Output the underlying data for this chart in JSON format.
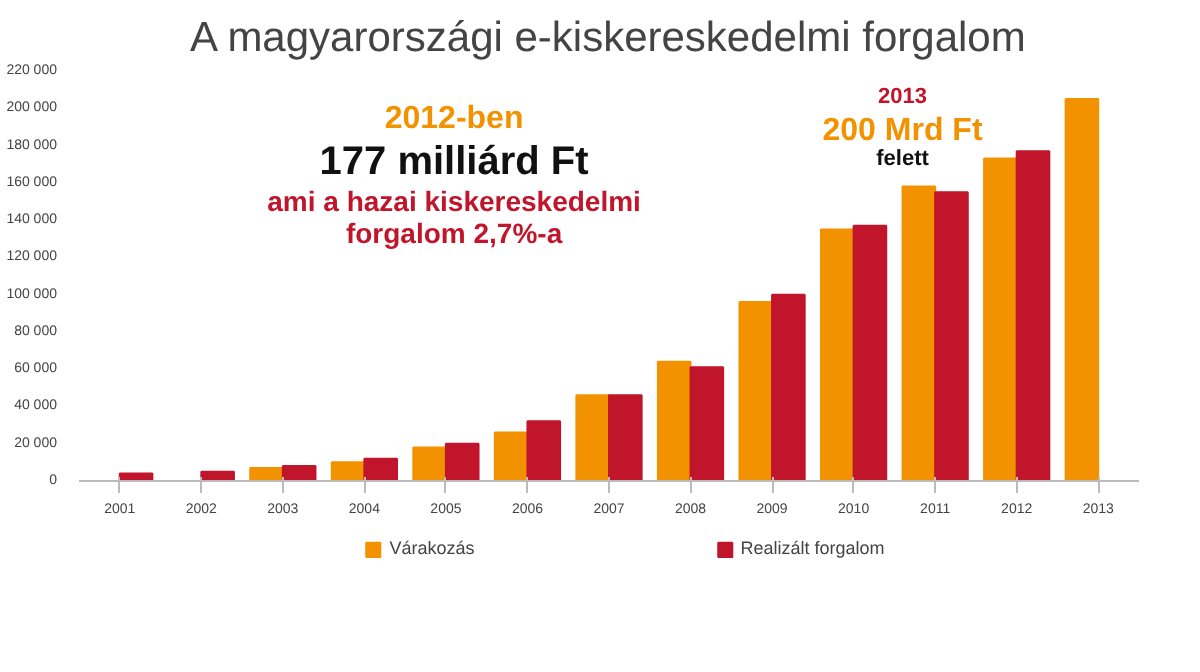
{
  "chart_data": {
    "type": "bar",
    "title": "A magyarországi e-kiskereskedelmi forgalom",
    "categories": [
      "2001",
      "2002",
      "2003",
      "2004",
      "2005",
      "2006",
      "2007",
      "2008",
      "2009",
      "2010",
      "2011",
      "2012",
      "2013"
    ],
    "series": [
      {
        "name": "Várakozás",
        "color": "#f39200",
        "values": [
          null,
          null,
          7000,
          10000,
          18000,
          26000,
          46000,
          64000,
          96000,
          135000,
          158000,
          173000,
          205000
        ]
      },
      {
        "name": "Realizált forgalom",
        "color": "#c0152a",
        "values": [
          4000,
          5000,
          8000,
          12000,
          20000,
          32000,
          46000,
          61000,
          100000,
          137000,
          155000,
          177000,
          null
        ]
      }
    ],
    "ylim": [
      0,
      220000
    ],
    "yticks": [
      {
        "value": 0,
        "label": "0"
      },
      {
        "value": 20000,
        "label": "20 000"
      },
      {
        "value": 40000,
        "label": "40 000"
      },
      {
        "value": 60000,
        "label": "60 000"
      },
      {
        "value": 80000,
        "label": "80 000"
      },
      {
        "value": 100000,
        "label": "100 000"
      },
      {
        "value": 120000,
        "label": "120 000"
      },
      {
        "value": 140000,
        "label": "140 000"
      },
      {
        "value": 160000,
        "label": "160 000"
      },
      {
        "value": 180000,
        "label": "180 000"
      },
      {
        "value": 200000,
        "label": "200 000"
      },
      {
        "value": 220000,
        "label": "220 000"
      }
    ],
    "annotations": [
      "2012-ben",
      "177 milliárd Ft",
      "ami a hazai kiskereskedelmi",
      "forgalom 2,7%-a",
      "2013",
      "200 Mrd Ft",
      "felett"
    ],
    "legend": "bottom",
    "grid": false
  }
}
